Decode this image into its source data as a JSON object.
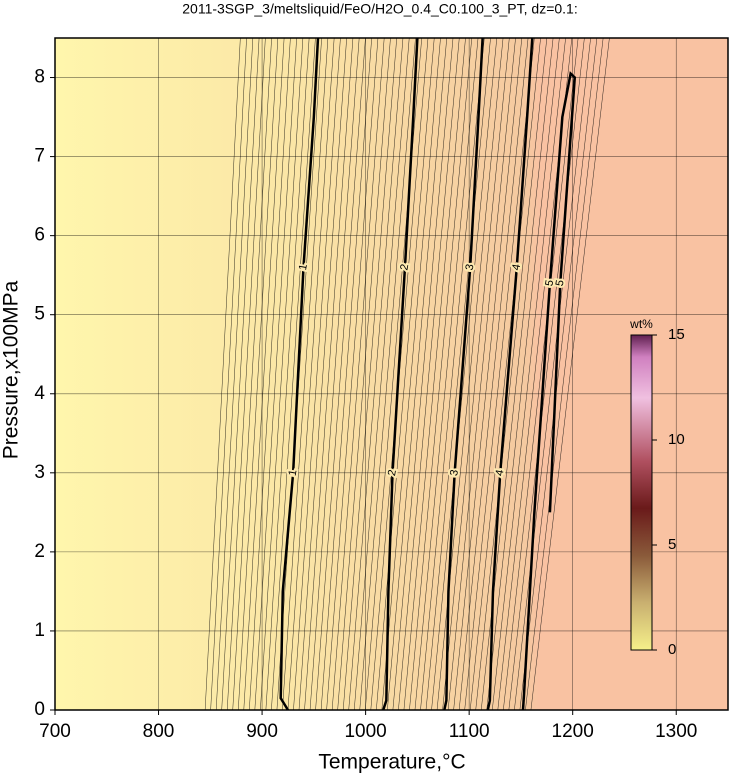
{
  "chart_data": {
    "type": "contour",
    "title": "2011-3SGP_3/meltsliquid/FeO/H2O_0.4_C0.100_3_PT, dz=0.1:",
    "xlabel": "Temperature,°C",
    "ylabel": "Pressure,x100MPa",
    "xlim": [
      700,
      1350
    ],
    "ylim": [
      0,
      8.5
    ],
    "xticks": [
      700,
      800,
      900,
      1000,
      1100,
      1200,
      1300
    ],
    "yticks": [
      0,
      1,
      2,
      3,
      4,
      5,
      6,
      7,
      8
    ],
    "grid": true,
    "contours": [
      {
        "level": 1,
        "x": [
          925,
          918,
          920,
          930,
          940,
          950,
          954
        ],
        "y": [
          0,
          0.15,
          1.5,
          3,
          5.6,
          7.5,
          8.5
        ]
      },
      {
        "level": 2,
        "x": [
          1017,
          1020,
          1022,
          1026,
          1038,
          1046,
          1050
        ],
        "y": [
          0,
          0.12,
          1.5,
          3,
          5.6,
          7.5,
          8.5
        ]
      },
      {
        "level": 3,
        "x": [
          1076,
          1078,
          1080,
          1086,
          1101,
          1109,
          1113
        ],
        "y": [
          0,
          0.12,
          1.5,
          3,
          5.6,
          7.5,
          8.5
        ]
      },
      {
        "level": 4,
        "x": [
          1118,
          1120,
          1123,
          1130,
          1146,
          1156,
          1161
        ],
        "y": [
          0,
          0.12,
          1.5,
          3,
          5.6,
          7.5,
          8.5
        ]
      },
      {
        "level": 5,
        "x": [
          1152,
          1153,
          1163,
          1178,
          1190,
          1198,
          1202,
          1188,
          1178
        ],
        "y": [
          0,
          0.2,
          2.5,
          5.4,
          7.5,
          8.05,
          8,
          5.4,
          2.5
        ]
      }
    ],
    "colorbar": {
      "label": "wt%",
      "lim": [
        0,
        15
      ],
      "ticks": [
        0,
        5,
        10,
        15
      ]
    }
  }
}
